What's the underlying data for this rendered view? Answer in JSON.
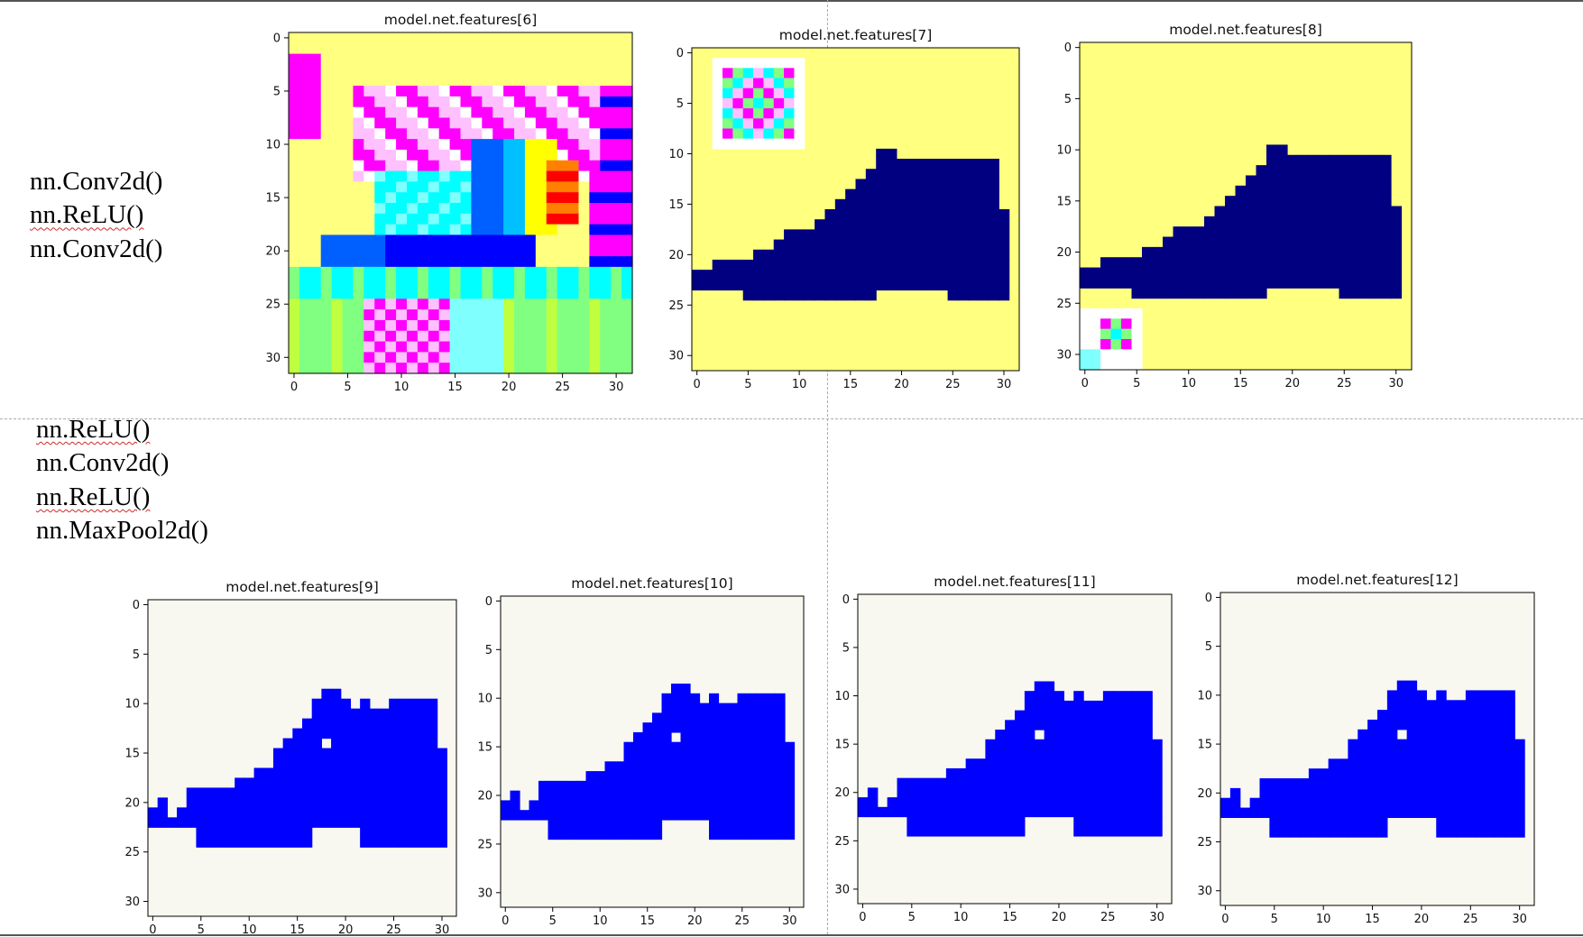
{
  "annotations": {
    "top": [
      "nn.Conv2d()",
      "nn.ReLU()",
      "nn.Conv2d()"
    ],
    "middle": [
      "nn.ReLU()",
      "nn.Conv2d()",
      "nn.ReLU()",
      "nn.MaxPool2d()"
    ]
  },
  "colors": {
    "foreground": "#000080",
    "background": "#ffff80",
    "bright_foreground": "#0000ff",
    "bright_background": "#f8f8f0",
    "rainbow_palette": [
      "#ff00ff",
      "#ffc0ff",
      "#ffffff",
      "#ffff80",
      "#80ffff",
      "#00ffff",
      "#00c0ff",
      "#0060ff",
      "#0000ff",
      "#80ff80",
      "#c0ff40",
      "#ffff00",
      "#ff8000",
      "#ff0000"
    ]
  },
  "chart_data": [
    {
      "type": "heatmap",
      "title": "model.net.features[6]",
      "grid_size": 32,
      "xticks": [
        "0",
        "5",
        "10",
        "15",
        "20",
        "25",
        "30"
      ],
      "yticks": [
        "0",
        "5",
        "10",
        "15",
        "20",
        "25",
        "30"
      ]
    },
    {
      "type": "heatmap",
      "title": "model.net.features[7]",
      "grid_size": 32,
      "xticks": [
        "0",
        "5",
        "10",
        "15",
        "20",
        "25",
        "30"
      ],
      "yticks": [
        "0",
        "5",
        "10",
        "15",
        "20",
        "25",
        "30"
      ]
    },
    {
      "type": "heatmap",
      "title": "model.net.features[8]",
      "grid_size": 32,
      "xticks": [
        "0",
        "5",
        "10",
        "15",
        "20",
        "25",
        "30"
      ],
      "yticks": [
        "0",
        "5",
        "10",
        "15",
        "20",
        "25",
        "30"
      ]
    },
    {
      "type": "heatmap",
      "title": "model.net.features[9]",
      "grid_size": 32,
      "xticks": [
        "0",
        "5",
        "10",
        "15",
        "20",
        "25",
        "30"
      ],
      "yticks": [
        "0",
        "5",
        "10",
        "15",
        "20",
        "25",
        "30"
      ]
    },
    {
      "type": "heatmap",
      "title": "model.net.features[10]",
      "grid_size": 32,
      "xticks": [
        "0",
        "5",
        "10",
        "15",
        "20",
        "25",
        "30"
      ],
      "yticks": [
        "0",
        "5",
        "10",
        "15",
        "20",
        "25",
        "30"
      ]
    },
    {
      "type": "heatmap",
      "title": "model.net.features[11]",
      "grid_size": 32,
      "xticks": [
        "0",
        "5",
        "10",
        "15",
        "20",
        "25",
        "30"
      ],
      "yticks": [
        "0",
        "5",
        "10",
        "15",
        "20",
        "25",
        "30"
      ]
    },
    {
      "type": "heatmap",
      "title": "model.net.features[12]",
      "grid_size": 32,
      "xticks": [
        "0",
        "5",
        "10",
        "15",
        "20",
        "25",
        "30"
      ],
      "yticks": [
        "0",
        "5",
        "10",
        "15",
        "20",
        "25",
        "30"
      ]
    }
  ]
}
